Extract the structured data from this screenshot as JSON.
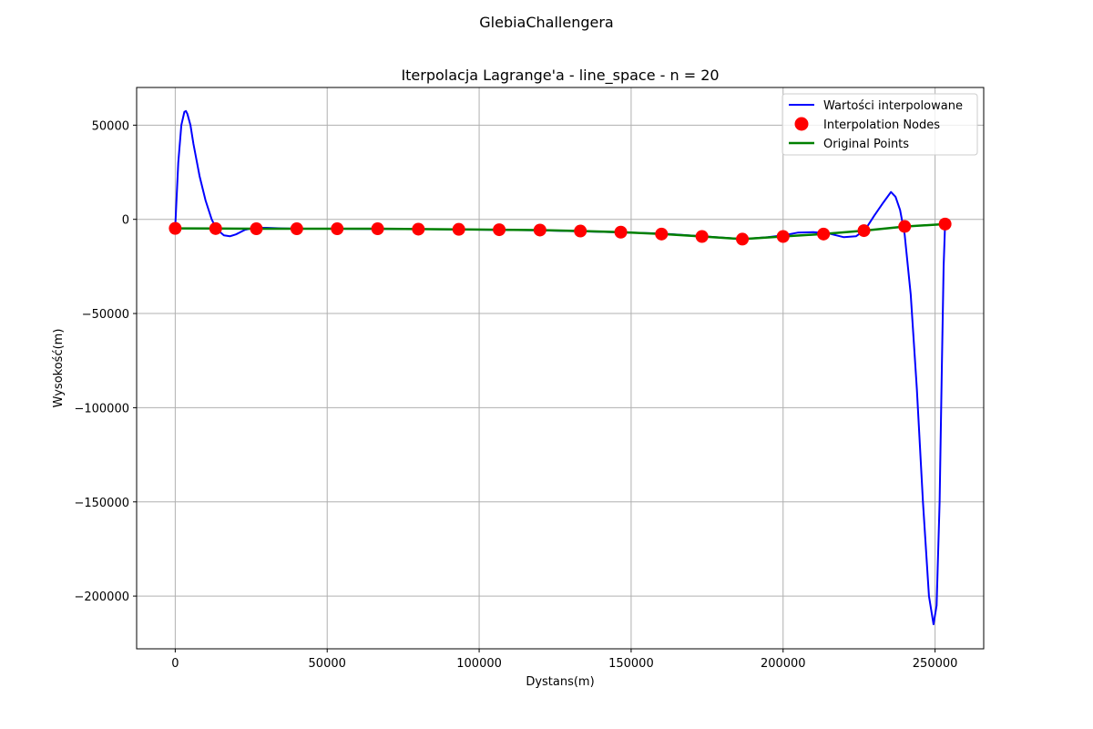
{
  "figure": {
    "suptitle": "GlebiaChallengera"
  },
  "chart_data": {
    "type": "line",
    "title": "Iterpolacja Lagrange'a - line_space - n = 20",
    "xlabel": "Dystans(m)",
    "ylabel": "Wysokość(m)",
    "xlim": [
      -12700,
      266000
    ],
    "ylim": [
      -228000,
      70000
    ],
    "x_ticks": [
      0,
      50000,
      100000,
      150000,
      200000,
      250000
    ],
    "x_tick_labels": [
      "0",
      "50000",
      "100000",
      "150000",
      "200000",
      "250000"
    ],
    "y_ticks": [
      50000,
      0,
      -50000,
      -100000,
      -150000,
      -200000
    ],
    "y_tick_labels": [
      "50000",
      "0",
      "−50000",
      "−100000",
      "−150000",
      "−200000"
    ],
    "grid": true,
    "legend_position": "top-right",
    "series": [
      {
        "name": "Wartości interpolowane",
        "kind": "line",
        "color": "#0000ff",
        "x": [
          0,
          1000,
          2000,
          3000,
          3500,
          4000,
          5000,
          6000,
          8000,
          10000,
          12000,
          13500,
          16000,
          18000,
          20000,
          23000,
          26000,
          30000,
          35000,
          40000,
          50000,
          80000,
          120000,
          160000,
          187000,
          195000,
          200000,
          205000,
          210000,
          215000,
          220000,
          224000,
          227000,
          230000,
          233000,
          235500,
          237000,
          238500,
          240000,
          242000,
          244000,
          246000,
          248000,
          249500,
          250500,
          251500,
          252200,
          252800,
          253300
        ],
        "y": [
          -4000,
          30000,
          50000,
          57000,
          57500,
          56000,
          50000,
          40000,
          23000,
          10000,
          0,
          -5000,
          -8500,
          -9000,
          -8000,
          -5500,
          -4500,
          -4500,
          -4800,
          -5000,
          -5000,
          -5200,
          -5800,
          -7500,
          -10500,
          -9500,
          -8500,
          -7000,
          -6800,
          -7500,
          -9500,
          -9000,
          -5500,
          2000,
          9000,
          14500,
          12000,
          5000,
          -8000,
          -40000,
          -90000,
          -150000,
          -200000,
          -215000,
          -205000,
          -150000,
          -80000,
          -25000,
          -2500
        ]
      },
      {
        "name": "Interpolation Nodes",
        "kind": "scatter",
        "color": "#ff0000",
        "x": [
          0,
          13300,
          26700,
          40000,
          53300,
          66600,
          80000,
          93300,
          106600,
          120000,
          133300,
          146600,
          160000,
          173300,
          186600,
          200000,
          213300,
          226600,
          240000,
          253300
        ],
        "y": [
          -4800,
          -4900,
          -5000,
          -5000,
          -5000,
          -5000,
          -5200,
          -5300,
          -5500,
          -5700,
          -6200,
          -6800,
          -7800,
          -9100,
          -10500,
          -9100,
          -7800,
          -6000,
          -3800,
          -2500
        ]
      },
      {
        "name": "Original Points",
        "kind": "line",
        "color": "#008000",
        "x": [
          0,
          13300,
          26700,
          40000,
          53300,
          66600,
          80000,
          93300,
          106600,
          120000,
          133300,
          146600,
          160000,
          173300,
          186600,
          200000,
          213300,
          226600,
          240000,
          253300
        ],
        "y": [
          -4800,
          -4900,
          -5000,
          -5000,
          -5000,
          -5000,
          -5200,
          -5300,
          -5500,
          -5700,
          -6200,
          -6800,
          -7800,
          -9100,
          -10500,
          -9100,
          -7800,
          -6000,
          -3800,
          -2500
        ]
      }
    ]
  }
}
